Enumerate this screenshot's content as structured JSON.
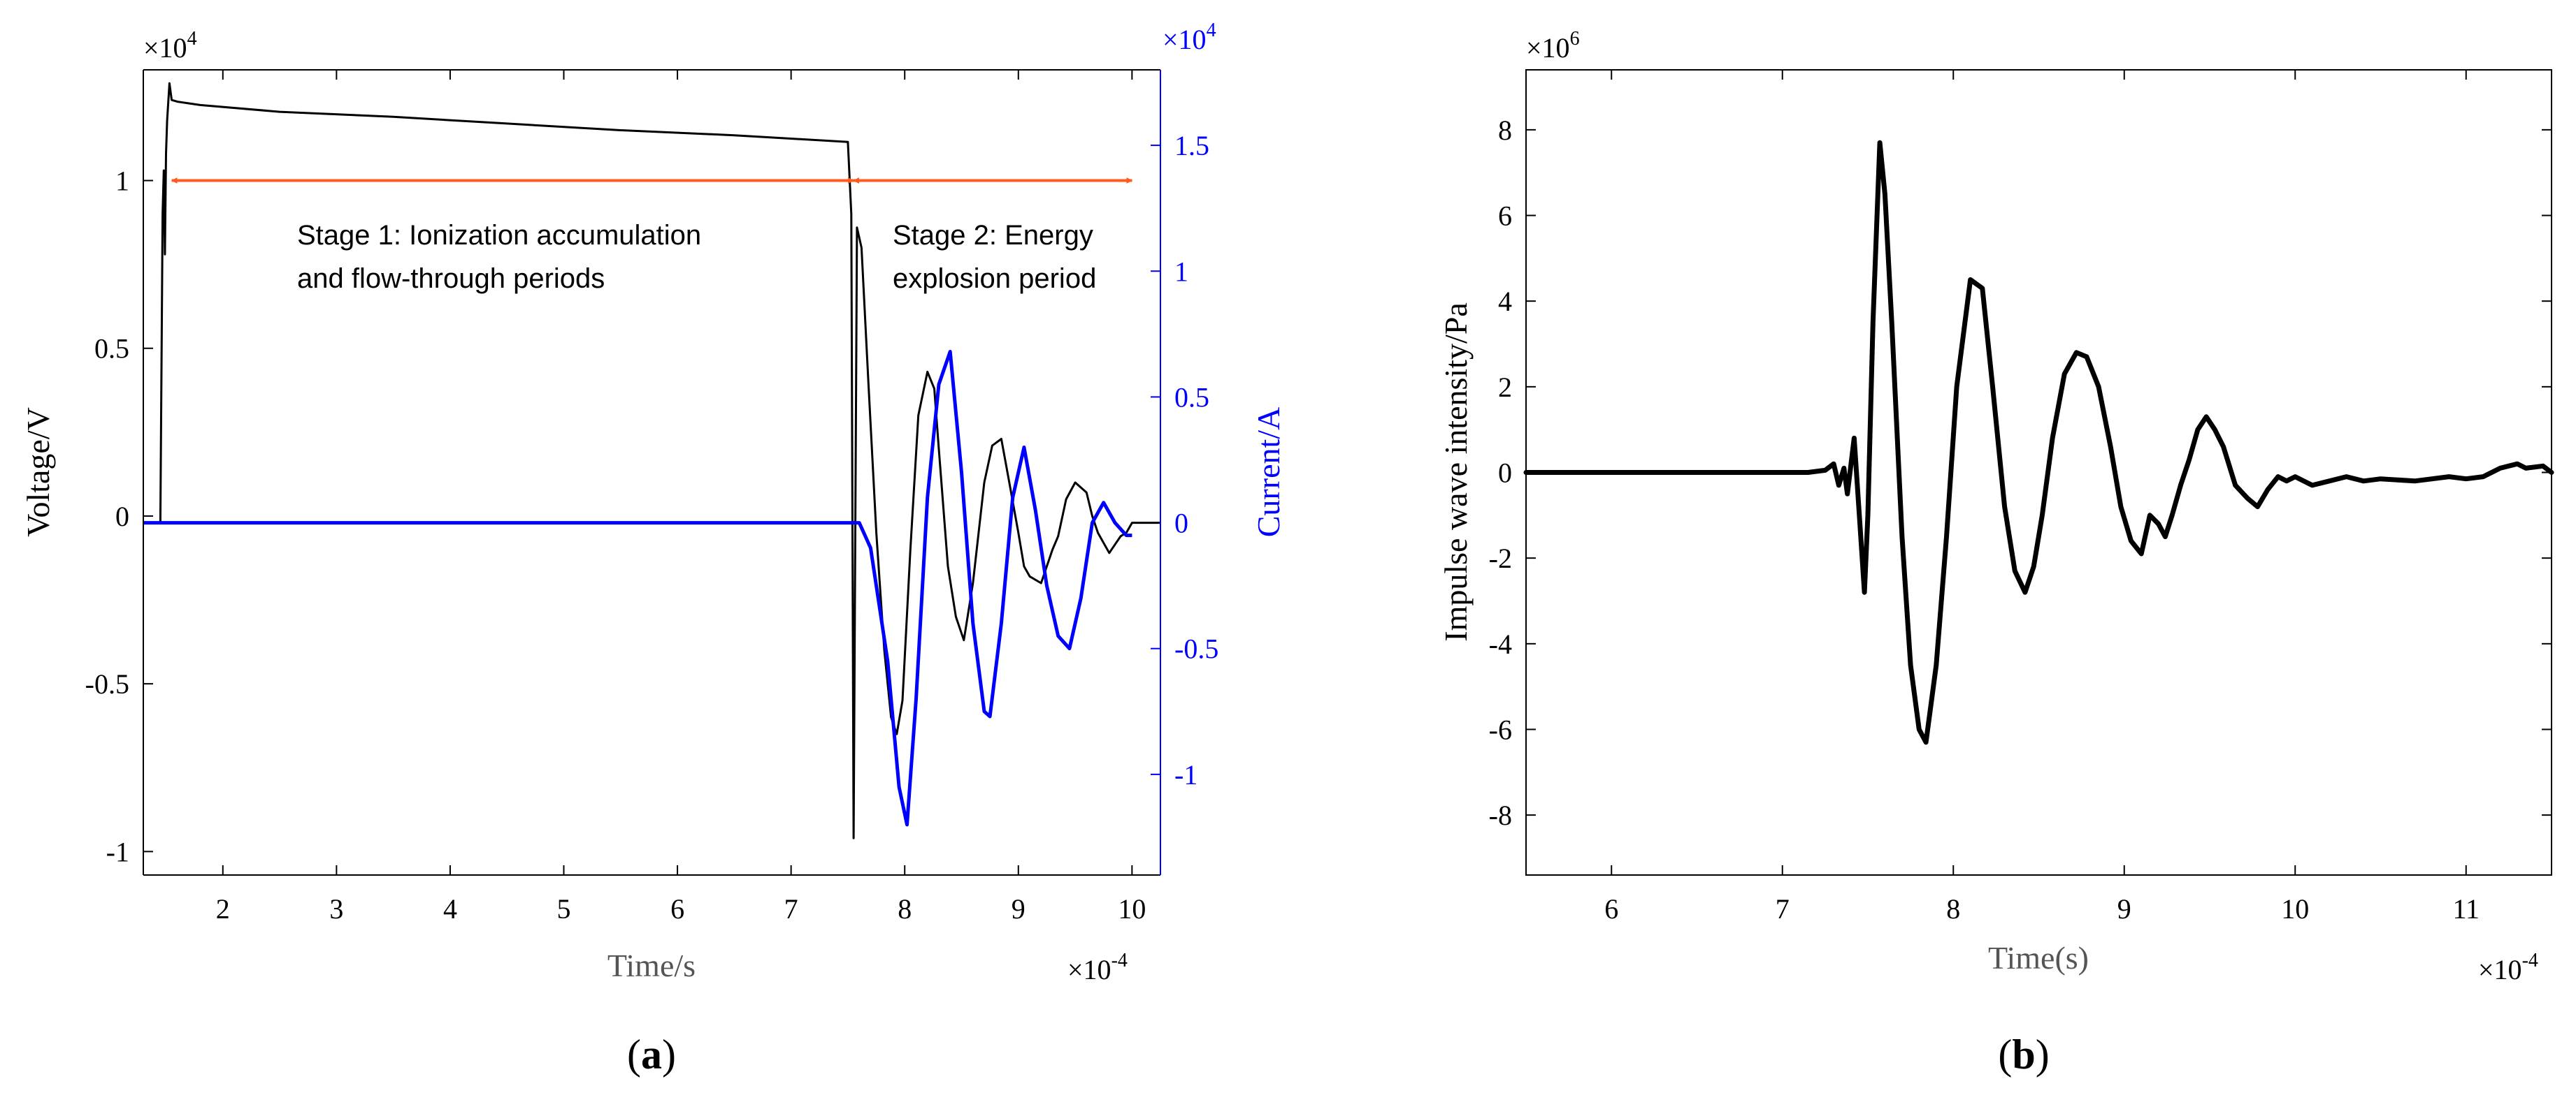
{
  "chart_data": [
    {
      "panel_label_letter": "a",
      "type": "line",
      "xlabel": "Time/s",
      "x_exponent_label": "×10",
      "x_exponent": "-4",
      "xlim": [
        1.3,
        10.25
      ],
      "xticks": [
        2,
        3,
        4,
        5,
        6,
        7,
        8,
        9,
        10
      ],
      "xtick_labels": [
        "2",
        "3",
        "4",
        "5",
        "6",
        "7",
        "8",
        "9",
        "10"
      ],
      "ylabel_left": "Voltage/V",
      "y_left_exponent_label": "×10",
      "y_left_exponent": "4",
      "ylim_left": [
        -1.07,
        1.33
      ],
      "yticks_left": [
        -1,
        -0.5,
        0,
        0.5,
        1
      ],
      "ytick_labels_left": [
        "-1",
        "-0.5",
        "0",
        "0.5",
        "1"
      ],
      "ylabel_right": "Current/A",
      "y_right_exponent_label": "×10",
      "y_right_exponent": "4",
      "ylim_right": [
        -1.4,
        1.8
      ],
      "yticks_right": [
        -1,
        -0.5,
        0,
        0.5,
        1,
        1.5
      ],
      "ytick_labels_right": [
        "-1",
        "-0.5",
        "0",
        "0.5",
        "1",
        "1.5"
      ],
      "colors": {
        "voltage": "#000000",
        "current": "#0000ff",
        "arrow": "#ff5a1f",
        "axis_right": "#0000ff"
      },
      "annotations": [
        {
          "id": "stage1",
          "lines": [
            "Stage 1: Ionization accumulation",
            "and flow-through periods"
          ]
        },
        {
          "id": "stage2",
          "lines": [
            "Stage 2: Energy",
            "explosion period"
          ]
        }
      ],
      "arrows": [
        {
          "from_x": 1.55,
          "to_x": 7.55,
          "y": 1.0
        },
        {
          "from_x": 7.55,
          "to_x": 10.0,
          "y": 1.0
        }
      ],
      "series": [
        {
          "axis": "left",
          "x": [
            1.3,
            1.45,
            1.47,
            1.48,
            1.49,
            1.5,
            1.51,
            1.53,
            1.55,
            1.6,
            1.8,
            2.5,
            3.5,
            4.5,
            5.5,
            6.5,
            7.0,
            7.5,
            7.53,
            7.55,
            7.58,
            7.62,
            7.68,
            7.75,
            7.82,
            7.88,
            7.93,
            7.98,
            8.05,
            8.12,
            8.2,
            8.26,
            8.3,
            8.38,
            8.45,
            8.52,
            8.6,
            8.65,
            8.7,
            8.77,
            8.85,
            8.92,
            9.0,
            9.05,
            9.1,
            9.2,
            9.3,
            9.35,
            9.42,
            9.5,
            9.6,
            9.65,
            9.7,
            9.8,
            9.9,
            9.95,
            10.0,
            10.25
          ],
          "y": [
            -0.02,
            -0.02,
            0.9,
            1.03,
            0.78,
            1.08,
            1.18,
            1.29,
            1.24,
            1.235,
            1.225,
            1.205,
            1.19,
            1.17,
            1.15,
            1.135,
            1.125,
            1.115,
            0.9,
            -0.96,
            0.86,
            0.8,
            0.4,
            -0.05,
            -0.4,
            -0.6,
            -0.65,
            -0.55,
            -0.1,
            0.3,
            0.43,
            0.38,
            0.2,
            -0.15,
            -0.3,
            -0.37,
            -0.2,
            -0.05,
            0.1,
            0.21,
            0.23,
            0.1,
            -0.05,
            -0.15,
            -0.18,
            -0.2,
            -0.1,
            -0.06,
            0.05,
            0.1,
            0.07,
            0.0,
            -0.05,
            -0.11,
            -0.06,
            -0.05,
            -0.02,
            -0.02
          ]
        },
        {
          "axis": "right",
          "x": [
            1.3,
            7.55,
            7.6,
            7.7,
            7.85,
            7.95,
            8.02,
            8.1,
            8.2,
            8.3,
            8.4,
            8.5,
            8.6,
            8.7,
            8.75,
            8.85,
            8.95,
            9.05,
            9.15,
            9.25,
            9.35,
            9.45,
            9.55,
            9.65,
            9.75,
            9.85,
            9.95,
            10.0
          ],
          "y": [
            0.0,
            0.0,
            0.0,
            -0.1,
            -0.55,
            -1.05,
            -1.2,
            -0.7,
            0.1,
            0.55,
            0.68,
            0.2,
            -0.4,
            -0.75,
            -0.77,
            -0.4,
            0.1,
            0.3,
            0.05,
            -0.25,
            -0.45,
            -0.5,
            -0.3,
            0.0,
            0.08,
            0.0,
            -0.05,
            -0.05
          ]
        }
      ]
    },
    {
      "panel_label_letter": "b",
      "type": "line",
      "xlabel": "Time(s)",
      "x_exponent_label": "×10",
      "x_exponent": "-4",
      "xlim": [
        5.5,
        11.5
      ],
      "xticks": [
        6,
        7,
        8,
        9,
        10,
        11
      ],
      "xtick_labels": [
        "6",
        "7",
        "8",
        "9",
        "10",
        "11"
      ],
      "ylabel": "Impulse wave intensity/Pa",
      "y_exponent_label": "×10",
      "y_exponent": "6",
      "ylim": [
        -9.4,
        9.4
      ],
      "yticks": [
        -8,
        -6,
        -4,
        -2,
        0,
        2,
        4,
        6,
        8
      ],
      "ytick_labels": [
        "-8",
        "-6",
        "-4",
        "-2",
        "0",
        "2",
        "4",
        "6",
        "8"
      ],
      "colors": {
        "line": "#000000"
      },
      "series": [
        {
          "x": [
            5.5,
            7.15,
            7.25,
            7.3,
            7.33,
            7.36,
            7.38,
            7.42,
            7.45,
            7.48,
            7.5,
            7.53,
            7.57,
            7.6,
            7.64,
            7.7,
            7.75,
            7.8,
            7.84,
            7.9,
            7.96,
            8.02,
            8.1,
            8.17,
            8.23,
            8.3,
            8.36,
            8.42,
            8.47,
            8.52,
            8.58,
            8.65,
            8.72,
            8.78,
            8.85,
            8.92,
            8.98,
            9.04,
            9.1,
            9.15,
            9.2,
            9.24,
            9.28,
            9.33,
            9.38,
            9.43,
            9.48,
            9.53,
            9.58,
            9.65,
            9.72,
            9.78,
            9.84,
            9.9,
            9.95,
            10.0,
            10.1,
            10.2,
            10.3,
            10.4,
            10.5,
            10.7,
            10.9,
            11.0,
            11.1,
            11.2,
            11.3,
            11.35,
            11.45,
            11.5
          ],
          "y": [
            0.0,
            0.0,
            0.05,
            0.2,
            -0.3,
            0.1,
            -0.5,
            0.8,
            -1.0,
            -2.8,
            -1.0,
            3.5,
            7.7,
            6.5,
            3.5,
            -1.5,
            -4.5,
            -6.0,
            -6.3,
            -4.5,
            -1.5,
            2.0,
            4.5,
            4.3,
            2.0,
            -0.8,
            -2.3,
            -2.8,
            -2.2,
            -1.0,
            0.8,
            2.3,
            2.8,
            2.7,
            2.0,
            0.6,
            -0.8,
            -1.6,
            -1.9,
            -1.0,
            -1.2,
            -1.5,
            -1.0,
            -0.3,
            0.3,
            1.0,
            1.3,
            1.0,
            0.6,
            -0.3,
            -0.6,
            -0.8,
            -0.4,
            -0.1,
            -0.2,
            -0.1,
            -0.3,
            -0.2,
            -0.1,
            -0.2,
            -0.15,
            -0.2,
            -0.1,
            -0.15,
            -0.1,
            0.1,
            0.2,
            0.1,
            0.15,
            0.0
          ]
        }
      ]
    }
  ]
}
